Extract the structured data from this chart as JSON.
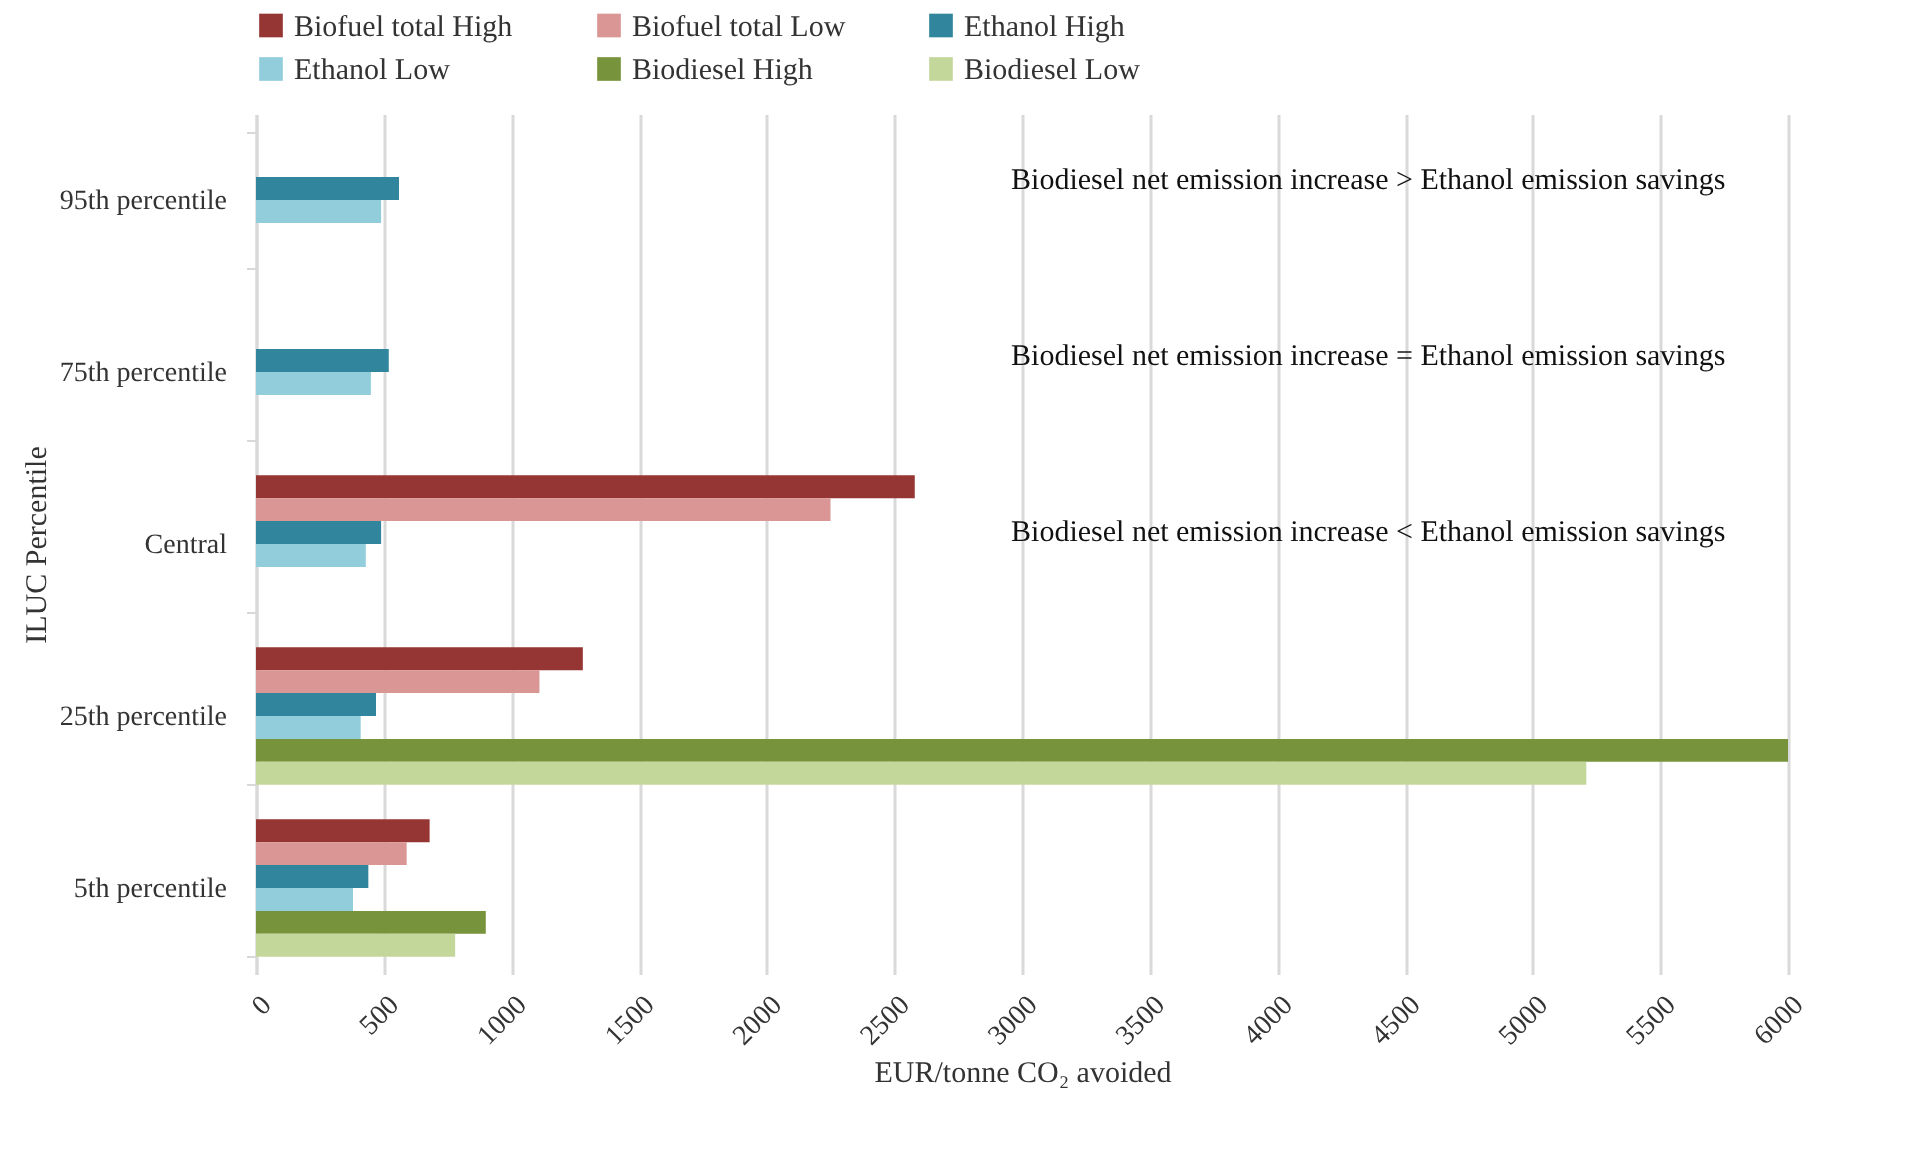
{
  "chart_data": {
    "type": "bar",
    "orientation": "horizontal",
    "xlabel": "EUR/tonne CO₂ avoided",
    "ylabel": "ILUC Percentile",
    "categories": [
      "95th percentile",
      "75th percentile",
      "Central",
      "25th percentile",
      "5th percentile"
    ],
    "series": [
      {
        "name": "Biofuel total High",
        "color": "#963634",
        "values": [
          null,
          null,
          2580,
          1280,
          680
        ]
      },
      {
        "name": "Biofuel total Low",
        "color": "#da9694",
        "values": [
          null,
          null,
          2250,
          1110,
          590
        ]
      },
      {
        "name": "Ethanol High",
        "color": "#31859c",
        "values": [
          560,
          520,
          490,
          470,
          440
        ]
      },
      {
        "name": "Ethanol Low",
        "color": "#92cddc",
        "values": [
          490,
          450,
          430,
          410,
          380
        ]
      },
      {
        "name": "Biodiesel High",
        "color": "#77933c",
        "values": [
          null,
          null,
          null,
          6000,
          900
        ]
      },
      {
        "name": "Biodiesel Low",
        "color": "#c4d79b",
        "values": [
          null,
          null,
          null,
          5210,
          780
        ]
      }
    ],
    "xlim": [
      0,
      6000
    ],
    "xticks": [
      0,
      500,
      1000,
      1500,
      2000,
      2500,
      3000,
      3500,
      4000,
      4500,
      5000,
      5500,
      6000
    ],
    "grid": "x",
    "legend": "top",
    "annotations": [
      "Biodiesel net emission increase > Ethanol emission savings",
      "Biodiesel net emission increase = Ethanol emission savings",
      "Biodiesel net emission increase < Ethanol emission savings"
    ]
  }
}
